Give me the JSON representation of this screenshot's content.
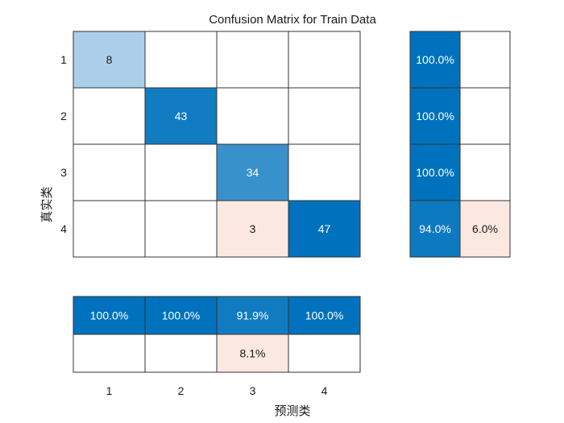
{
  "chart_data": {
    "type": "heatmap",
    "title": "Confusion Matrix for Train Data",
    "xlabel": "预测类",
    "ylabel": "真实类",
    "row_labels": [
      "1",
      "2",
      "3",
      "4"
    ],
    "col_labels": [
      "1",
      "2",
      "3",
      "4"
    ],
    "matrix": [
      [
        8,
        null,
        null,
        null
      ],
      [
        null,
        43,
        null,
        null
      ],
      [
        null,
        null,
        34,
        null
      ],
      [
        null,
        null,
        3,
        47
      ]
    ],
    "row_summary": [
      [
        "100.0%",
        ""
      ],
      [
        "100.0%",
        ""
      ],
      [
        "100.0%",
        ""
      ],
      [
        "94.0%",
        "6.0%"
      ]
    ],
    "row_summary_values": [
      [
        100.0,
        null
      ],
      [
        100.0,
        null
      ],
      [
        100.0,
        null
      ],
      [
        94.0,
        6.0
      ]
    ],
    "column_summary": [
      [
        "100.0%",
        "100.0%",
        "91.9%",
        "100.0%"
      ],
      [
        "",
        "",
        "8.1%",
        ""
      ]
    ],
    "column_summary_values": [
      [
        100.0,
        100.0,
        91.9,
        100.0
      ],
      [
        null,
        null,
        8.1,
        null
      ]
    ],
    "colors": {
      "correct_max": "#0072bd",
      "correct_light": "#cfe2f2",
      "incorrect_light": "#fbe9e1",
      "empty": "#ffffff",
      "grid": "#333333"
    }
  }
}
